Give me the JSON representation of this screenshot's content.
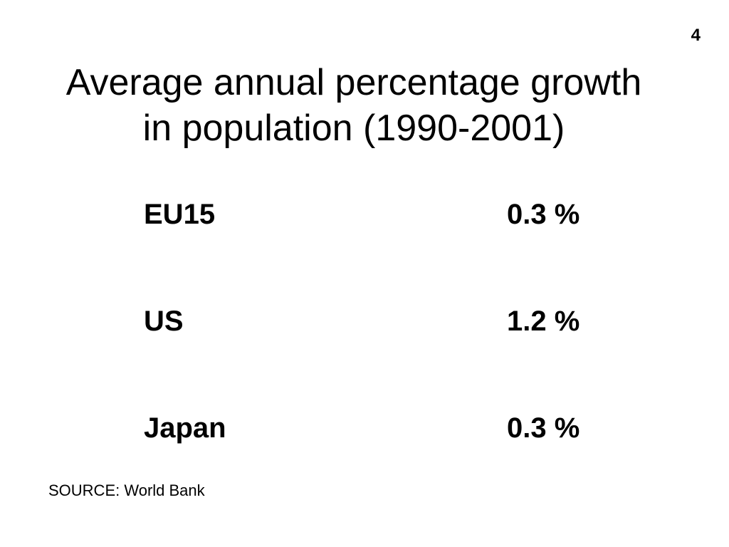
{
  "slide": {
    "number": "4",
    "title_line1": "Average annual percentage growth",
    "title_line2": "in population (1990-2001)",
    "rows": [
      {
        "region": "EU15",
        "value": "0.3 %"
      },
      {
        "region": "US",
        "value": "1.2 %"
      },
      {
        "region": "Japan",
        "value": "0.3 %"
      }
    ],
    "source": "SOURCE: World Bank"
  }
}
